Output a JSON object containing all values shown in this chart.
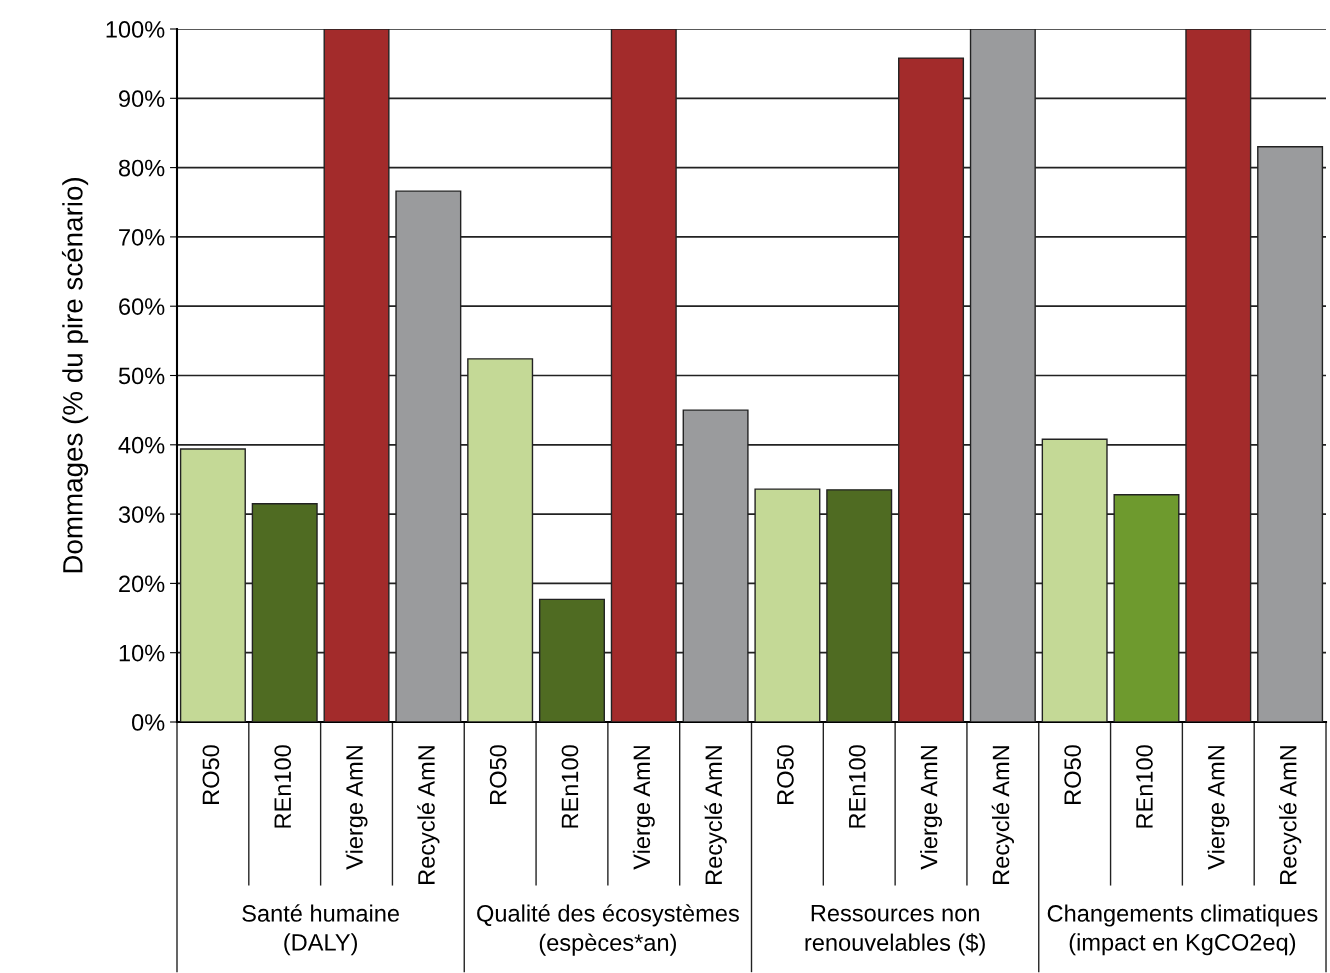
{
  "chart_data": {
    "type": "bar",
    "ylabel": "Dommages (% du pire scénario)",
    "categories": [
      "RO50",
      "REn100",
      "Vierge AmN",
      "Recyclé AmN",
      "RO50",
      "REn100",
      "Vierge AmN",
      "Recyclé AmN",
      "RO50",
      "REn100",
      "Vierge AmN",
      "Recyclé AmN",
      "RO50",
      "REn100",
      "Vierge AmN",
      "Recyclé AmN"
    ],
    "values": [
      39.4,
      31.5,
      100,
      76.6,
      52.4,
      17.7,
      100,
      45.0,
      33.6,
      33.5,
      95.8,
      100,
      40.8,
      32.8,
      100,
      83.0
    ],
    "colors": [
      "#c4d996",
      "#4f6b22",
      "#a32b2b",
      "#9a9b9d",
      "#c4d996",
      "#4f6b22",
      "#a32b2b",
      "#9a9b9d",
      "#c4d996",
      "#4f6b22",
      "#a32b2b",
      "#9a9b9d",
      "#c4d996",
      "#6e9a2e",
      "#a32b2b",
      "#9a9b9d"
    ],
    "annotations": [
      "Santé humaine\n(DALY)",
      "Qualité des écosystèmes\n(espèces*an)",
      "Ressources non\nrenouvelables ($)",
      "Changements climatiques\n(impact en KgCO2eq)"
    ],
    "ylim": [
      0,
      100
    ],
    "yticks": [
      {
        "value": 0,
        "label": "0%"
      },
      {
        "value": 10,
        "label": "10%"
      },
      {
        "value": 20,
        "label": "20%"
      },
      {
        "value": 30,
        "label": "30%"
      },
      {
        "value": 40,
        "label": "40%"
      },
      {
        "value": 50,
        "label": "50%"
      },
      {
        "value": 60,
        "label": "60%"
      },
      {
        "value": 70,
        "label": "70%"
      },
      {
        "value": 80,
        "label": "80%"
      },
      {
        "value": 90,
        "label": "90%"
      },
      {
        "value": 100,
        "label": "100%"
      }
    ],
    "grid": "y",
    "legend": false
  }
}
